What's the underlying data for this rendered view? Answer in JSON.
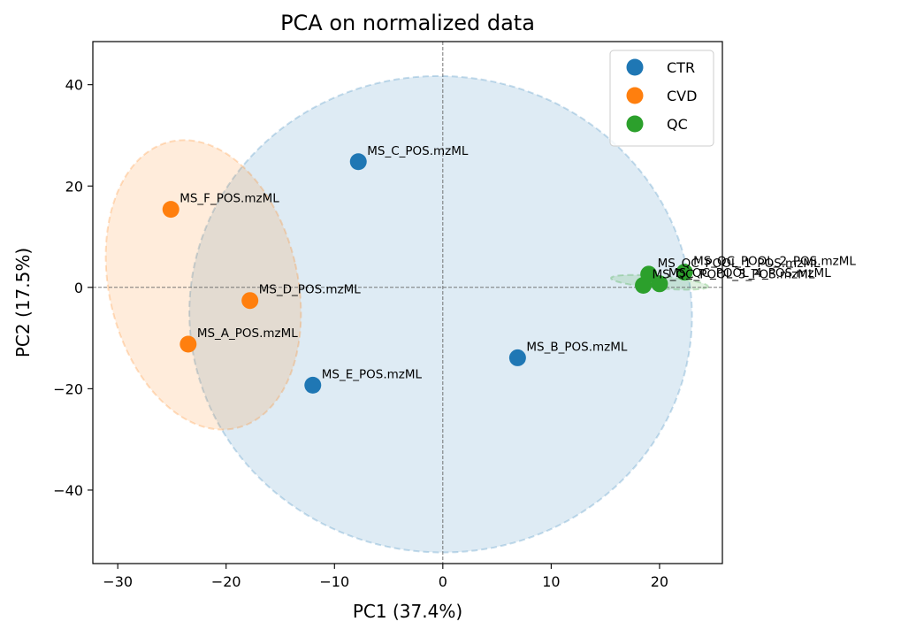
{
  "chart_data": {
    "type": "scatter",
    "title": "PCA on normalized data",
    "xlabel": "PC1 (37.4%)",
    "ylabel": "PC2 (17.5%)",
    "xlim": [
      -32.3,
      25.8
    ],
    "ylim": [
      -54.5,
      48.5
    ],
    "xticks": [
      -30,
      -20,
      -10,
      0,
      10,
      20
    ],
    "xtick_labels": [
      "−30",
      "−20",
      "−10",
      "0",
      "10",
      "20"
    ],
    "yticks": [
      -40,
      -20,
      0,
      20,
      40
    ],
    "ytick_labels": [
      "−40",
      "−20",
      "0",
      "20",
      "40"
    ],
    "grid": false,
    "reference_lines": [
      {
        "axis": "x",
        "value": 0,
        "style": "dashed"
      },
      {
        "axis": "y",
        "value": 0,
        "style": "dashed"
      }
    ],
    "legend": {
      "position": "top-right"
    },
    "series": [
      {
        "name": "CTR",
        "color": "#1f77b4",
        "points": [
          {
            "x": -7.8,
            "y": 24.8,
            "label": "MS_C_POS.mzML"
          },
          {
            "x": 6.9,
            "y": -13.9,
            "label": "MS_B_POS.mzML"
          },
          {
            "x": -12.0,
            "y": -19.3,
            "label": "MS_E_POS.mzML"
          }
        ],
        "ellipse": {
          "cx": -0.2,
          "cy": -5.3,
          "rx": 23.2,
          "ry": 47.0,
          "angle_deg": 4
        }
      },
      {
        "name": "CVD",
        "color": "#ff7f0e",
        "points": [
          {
            "x": -25.1,
            "y": 15.4,
            "label": "MS_F_POS.mzML"
          },
          {
            "x": -17.8,
            "y": -2.6,
            "label": "MS_D_POS.mzML"
          },
          {
            "x": -23.5,
            "y": -11.2,
            "label": "MS_A_POS.mzML"
          }
        ],
        "ellipse": {
          "cx": -22.1,
          "cy": 0.5,
          "rx": 8.7,
          "ry": 29.0,
          "angle_deg": -13
        }
      },
      {
        "name": "QC",
        "color": "#2ca02c",
        "points": [
          {
            "x": 19.0,
            "y": 2.6,
            "label": "MS_QC_POOL_1_POS.mzML"
          },
          {
            "x": 22.3,
            "y": 3.0,
            "label": "MS_QC_POOL_2_POS.mzML"
          },
          {
            "x": 18.5,
            "y": 0.4,
            "label": "MS_QC_POOL_3_POS.mzML"
          },
          {
            "x": 20.0,
            "y": 0.7,
            "label": "MS_QC_POOL_4_POS.mzML"
          }
        ],
        "ellipse": {
          "cx": 20.0,
          "cy": 1.0,
          "rx": 4.5,
          "ry": 1.2,
          "angle_deg": 5
        }
      }
    ]
  }
}
